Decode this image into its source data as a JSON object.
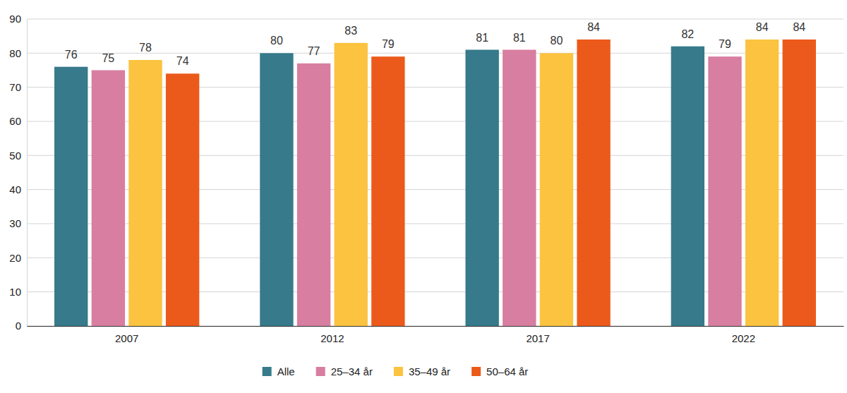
{
  "chart_data": {
    "type": "bar",
    "categories": [
      "2007",
      "2012",
      "2017",
      "2022"
    ],
    "series": [
      {
        "name": "Alle",
        "color": "#367a8b",
        "values": [
          76,
          80,
          81,
          82
        ]
      },
      {
        "name": "25–34 år",
        "color": "#d87ea0",
        "values": [
          75,
          77,
          81,
          79
        ]
      },
      {
        "name": "35–49 år",
        "color": "#fbc33f",
        "values": [
          78,
          83,
          80,
          84
        ]
      },
      {
        "name": "50–64 år",
        "color": "#eb5a1a",
        "values": [
          74,
          79,
          84,
          84
        ]
      }
    ],
    "ylim": [
      0,
      90
    ],
    "yticks": [
      0,
      10,
      20,
      30,
      40,
      50,
      60,
      70,
      80,
      90
    ],
    "grid": true,
    "data_labels": true,
    "legend": "bottom"
  }
}
